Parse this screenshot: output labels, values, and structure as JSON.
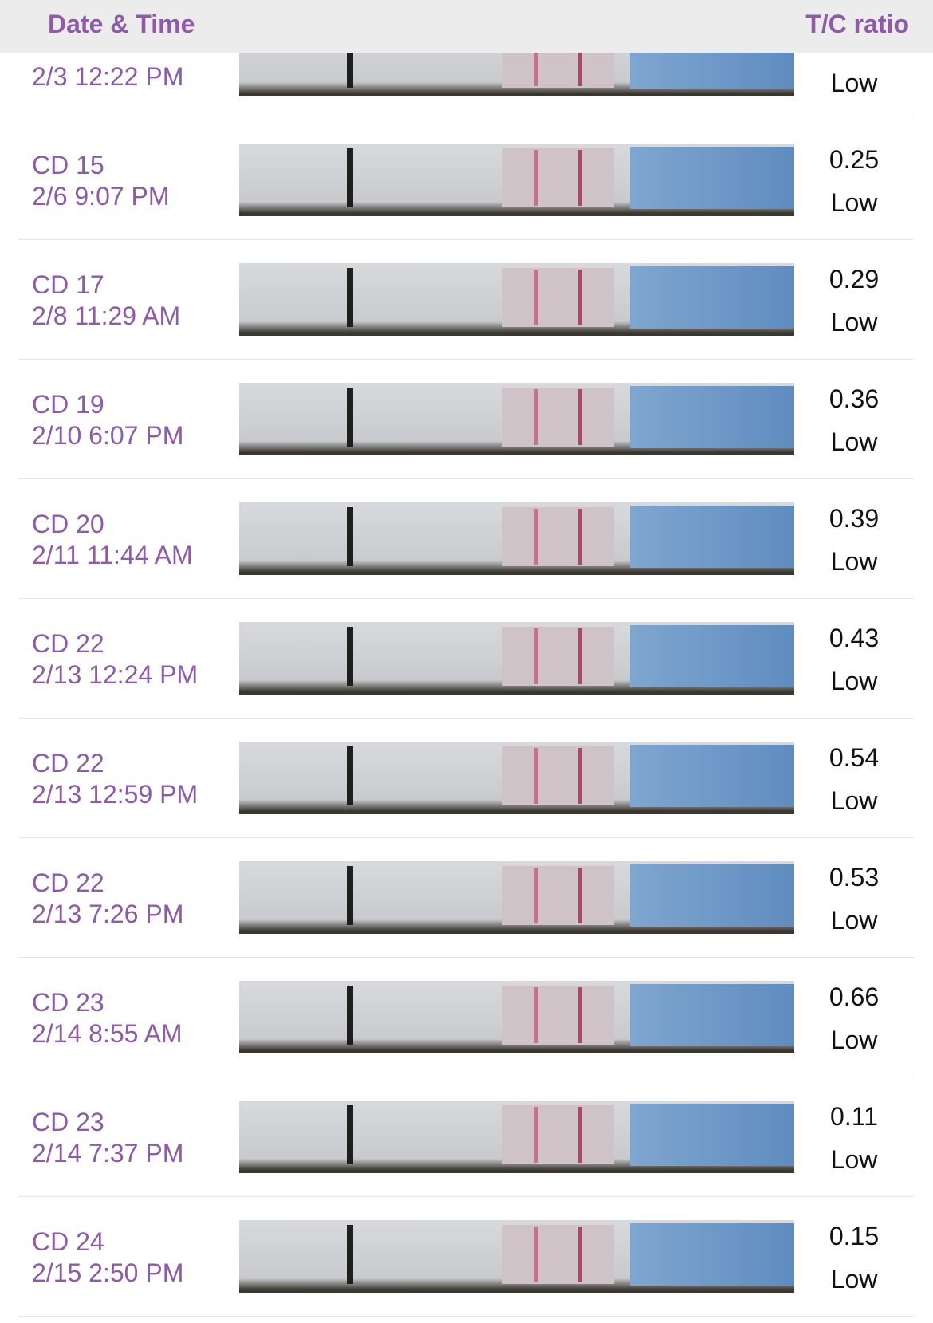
{
  "header": {
    "date_label": "Date & Time",
    "ratio_label": "T/C ratio"
  },
  "rows": [
    {
      "date": "2/3 12:22 PM",
      "result": "Low"
    },
    {
      "cd": "CD 15",
      "date": "2/6 9:07 PM",
      "ratio": "0.25",
      "result": "Low"
    },
    {
      "cd": "CD 17",
      "date": "2/8 11:29 AM",
      "ratio": "0.29",
      "result": "Low"
    },
    {
      "cd": "CD 19",
      "date": "2/10 6:07 PM",
      "ratio": "0.36",
      "result": "Low"
    },
    {
      "cd": "CD 20",
      "date": "2/11 11:44 AM",
      "ratio": "0.39",
      "result": "Low"
    },
    {
      "cd": "CD 22",
      "date": "2/13 12:24 PM",
      "ratio": "0.43",
      "result": "Low"
    },
    {
      "cd": "CD 22",
      "date": "2/13 12:59 PM",
      "ratio": "0.54",
      "result": "Low"
    },
    {
      "cd": "CD 22",
      "date": "2/13 7:26 PM",
      "ratio": "0.53",
      "result": "Low"
    },
    {
      "cd": "CD 23",
      "date": "2/14 8:55 AM",
      "ratio": "0.66",
      "result": "Low"
    },
    {
      "cd": "CD 23",
      "date": "2/14 7:37 PM",
      "ratio": "0.11",
      "result": "Low"
    },
    {
      "cd": "CD 24",
      "date": "2/15 2:50 PM",
      "ratio": "0.15",
      "result": "Low"
    }
  ]
}
